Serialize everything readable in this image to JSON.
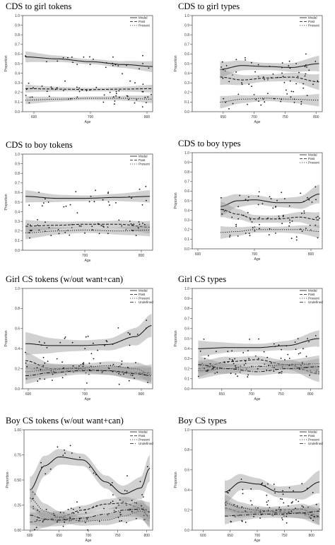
{
  "chart_data": [
    {
      "title": "CDS to girl tokens",
      "type": "scatter",
      "xlabel": "Age",
      "ylabel": "Proportion",
      "xlim": [
        580,
        810
      ],
      "ylim": [
        0,
        1.0
      ],
      "xticks": [
        600,
        700,
        800
      ],
      "xtick_labels": [
        "600",
        "700",
        "800"
      ],
      "yticks": [
        0,
        0.1,
        0.2,
        0.3,
        0.4,
        0.5,
        0.6,
        0.7,
        0.8,
        0.9,
        1.0
      ],
      "ytick_labels": [
        "0.0",
        "0.1",
        "0.2",
        "0.3",
        "0.4",
        "0.5",
        "0.6",
        "0.7",
        "0.8",
        "0.9",
        "1.0"
      ],
      "legend": [
        "Modal",
        "Past",
        "Present"
      ],
      "legend_position": "top-right",
      "series": [
        {
          "name": "Modal",
          "dash": "solid",
          "x": [
            585,
            640,
            700,
            760,
            810
          ],
          "y": [
            0.57,
            0.55,
            0.52,
            0.49,
            0.47
          ],
          "band": 0.035
        },
        {
          "name": "Past",
          "dash": "dashed",
          "x": [
            585,
            640,
            700,
            760,
            810
          ],
          "y": [
            0.24,
            0.235,
            0.23,
            0.235,
            0.24
          ],
          "band": 0.025
        },
        {
          "name": "Present",
          "dash": "dotted",
          "x": [
            585,
            640,
            700,
            760,
            810
          ],
          "y": [
            0.12,
            0.13,
            0.14,
            0.14,
            0.13
          ],
          "band": 0.025
        }
      ]
    },
    {
      "title": "CDS to girl types",
      "type": "scatter",
      "xlabel": "Age",
      "ylabel": "Proportion",
      "xlim": [
        600,
        810
      ],
      "ylim": [
        0,
        1.0
      ],
      "xticks": [
        650,
        700,
        750,
        800
      ],
      "xtick_labels": [
        "650",
        "700",
        "750",
        "800"
      ],
      "yticks": [
        0,
        0.1,
        0.2,
        0.3,
        0.4,
        0.5,
        0.6,
        0.7,
        0.8,
        0.9,
        1.0
      ],
      "ytick_labels": [
        "0.0",
        "0.1",
        "0.2",
        "0.3",
        "0.4",
        "0.5",
        "0.6",
        "0.7",
        "0.8",
        "0.9",
        "1.0"
      ],
      "legend": [
        "Modal",
        "Past",
        "Present"
      ],
      "legend_position": "top-right",
      "series": [
        {
          "name": "Modal",
          "dash": "solid",
          "x": [
            645,
            680,
            720,
            760,
            805
          ],
          "y": [
            0.44,
            0.48,
            0.47,
            0.46,
            0.5
          ],
          "band": 0.05
        },
        {
          "name": "Past",
          "dash": "dashed",
          "x": [
            645,
            680,
            720,
            760,
            805
          ],
          "y": [
            0.36,
            0.33,
            0.35,
            0.36,
            0.31
          ],
          "band": 0.05
        },
        {
          "name": "Present",
          "dash": "dotted",
          "x": [
            645,
            680,
            720,
            760,
            805
          ],
          "y": [
            0.1,
            0.13,
            0.14,
            0.13,
            0.12
          ],
          "band": 0.04
        }
      ]
    },
    {
      "title": "CDS to boy tokens",
      "type": "scatter",
      "xlabel": "Age",
      "ylabel": "Proportion",
      "xlim": [
        590,
        820
      ],
      "ylim": [
        0,
        1.0
      ],
      "xticks": [
        700,
        800
      ],
      "xtick_labels": [
        "700",
        "800"
      ],
      "yticks": [
        0,
        0.1,
        0.2,
        0.3,
        0.4,
        0.5,
        0.6,
        0.7,
        0.8,
        0.9,
        1.0
      ],
      "ytick_labels": [
        "0.0",
        "0.1",
        "0.2",
        "0.3",
        "0.4",
        "0.5",
        "0.6",
        "0.7",
        "0.8",
        "0.9",
        "1.0"
      ],
      "legend": [
        "Modal",
        "Past",
        "Present"
      ],
      "legend_position": "top-right",
      "series": [
        {
          "name": "Modal",
          "dash": "solid",
          "x": [
            595,
            650,
            700,
            760,
            815
          ],
          "y": [
            0.56,
            0.54,
            0.54,
            0.55,
            0.56
          ],
          "band": 0.04
        },
        {
          "name": "Past",
          "dash": "dashed",
          "x": [
            595,
            650,
            700,
            760,
            815
          ],
          "y": [
            0.25,
            0.26,
            0.27,
            0.27,
            0.24
          ],
          "band": 0.04
        },
        {
          "name": "Present",
          "dash": "dotted",
          "x": [
            595,
            650,
            700,
            760,
            815
          ],
          "y": [
            0.18,
            0.2,
            0.21,
            0.2,
            0.21
          ],
          "band": 0.04
        }
      ]
    },
    {
      "title": "CDS to boy types",
      "type": "scatter",
      "xlabel": "Age",
      "ylabel": "Proportion",
      "xlim": [
        590,
        820
      ],
      "ylim": [
        0,
        1.0
      ],
      "xticks": [
        600,
        700,
        800
      ],
      "xtick_labels": [
        "600",
        "700",
        "800"
      ],
      "yticks": [
        0,
        0.1,
        0.2,
        0.3,
        0.4,
        0.5,
        0.6,
        0.7,
        0.8,
        0.9,
        1.0
      ],
      "ytick_labels": [
        "0.0",
        "0.1",
        "0.2",
        "0.3",
        "0.4",
        "0.5",
        "0.6",
        "0.7",
        "0.8",
        "0.9",
        "1.0"
      ],
      "legend": [
        "Modal",
        "Past",
        "Present"
      ],
      "legend_position": "top-right",
      "series": [
        {
          "name": "Modal",
          "dash": "solid",
          "x": [
            640,
            670,
            700,
            740,
            780,
            815
          ],
          "y": [
            0.44,
            0.5,
            0.51,
            0.48,
            0.48,
            0.57
          ],
          "band": 0.06
        },
        {
          "name": "Past",
          "dash": "dashed",
          "x": [
            640,
            670,
            700,
            740,
            780,
            815
          ],
          "y": [
            0.41,
            0.36,
            0.31,
            0.31,
            0.33,
            0.3
          ],
          "band": 0.05
        },
        {
          "name": "Present",
          "dash": "dotted",
          "x": [
            640,
            670,
            700,
            740,
            780,
            815
          ],
          "y": [
            0.17,
            0.18,
            0.2,
            0.2,
            0.2,
            0.18
          ],
          "band": 0.04
        }
      ]
    },
    {
      "title": "Girl CS tokens (w/out want+can)",
      "type": "scatter",
      "xlabel": "Age",
      "ylabel": "Proportion",
      "xlim": [
        590,
        820
      ],
      "ylim": [
        0,
        1.0
      ],
      "xticks": [
        600,
        700,
        800
      ],
      "xtick_labels": [
        "600",
        "700",
        "800"
      ],
      "yticks": [
        0,
        0.2,
        0.4,
        0.6,
        0.8,
        1.0
      ],
      "ytick_labels": [
        "0.0",
        "0.2",
        "0.4",
        "0.6",
        "0.8",
        "1.0"
      ],
      "legend": [
        "Modal",
        "Past",
        "Present",
        "Undefined"
      ],
      "legend_position": "top-right",
      "series": [
        {
          "name": "Modal",
          "dash": "solid",
          "x": [
            595,
            640,
            690,
            740,
            790,
            818
          ],
          "y": [
            0.45,
            0.43,
            0.43,
            0.44,
            0.52,
            0.63
          ],
          "band": 0.07
        },
        {
          "name": "Past",
          "dash": "dashed",
          "x": [
            595,
            640,
            690,
            740,
            790,
            818
          ],
          "y": [
            0.28,
            0.2,
            0.2,
            0.18,
            0.16,
            0.16
          ],
          "band": 0.05
        },
        {
          "name": "Present",
          "dash": "dotted",
          "x": [
            595,
            640,
            690,
            740,
            790,
            818
          ],
          "y": [
            0.17,
            0.19,
            0.21,
            0.23,
            0.2,
            0.14
          ],
          "band": 0.05
        },
        {
          "name": "Undefined",
          "dash": "dashdot",
          "x": [
            595,
            640,
            690,
            740,
            790,
            818
          ],
          "y": [
            0.13,
            0.16,
            0.18,
            0.18,
            0.15,
            0.13
          ],
          "band": 0.05
        }
      ]
    },
    {
      "title": "Girl CS types",
      "type": "scatter",
      "xlabel": "Age",
      "ylabel": "Proportion",
      "xlim": [
        600,
        820
      ],
      "ylim": [
        0,
        1.0
      ],
      "xticks": [
        650,
        700,
        750,
        800
      ],
      "xtick_labels": [
        "650",
        "700",
        "750",
        "800"
      ],
      "yticks": [
        0,
        0.1,
        0.2,
        0.3,
        0.4,
        0.5,
        0.6,
        0.7,
        0.8,
        0.9,
        1.0
      ],
      "ytick_labels": [
        "0.0",
        "0.1",
        "0.2",
        "0.3",
        "0.4",
        "0.5",
        "0.6",
        "0.7",
        "0.8",
        "0.9",
        "1.0"
      ],
      "legend": [
        "Modal",
        "Past",
        "Present",
        "Undefined"
      ],
      "legend_position": "top-right",
      "series": [
        {
          "name": "Modal",
          "dash": "solid",
          "x": [
            610,
            660,
            710,
            760,
            815
          ],
          "y": [
            0.4,
            0.41,
            0.41,
            0.43,
            0.5
          ],
          "band": 0.05
        },
        {
          "name": "Past",
          "dash": "dashed",
          "x": [
            610,
            660,
            710,
            760,
            815
          ],
          "y": [
            0.2,
            0.27,
            0.29,
            0.24,
            0.15
          ],
          "band": 0.05
        },
        {
          "name": "Present",
          "dash": "dotted",
          "x": [
            610,
            660,
            710,
            760,
            815
          ],
          "y": [
            0.18,
            0.2,
            0.22,
            0.24,
            0.25
          ],
          "band": 0.05
        },
        {
          "name": "Undefined",
          "dash": "dashdot",
          "x": [
            610,
            660,
            710,
            760,
            815
          ],
          "y": [
            0.24,
            0.2,
            0.17,
            0.2,
            0.22
          ],
          "band": 0.05
        }
      ]
    },
    {
      "title": "Boy CS tokens (w/out want+can)",
      "type": "scatter",
      "xlabel": "Age",
      "ylabel": "Proportion",
      "xlim": [
        590,
        810
      ],
      "ylim": [
        0,
        1.0
      ],
      "xticks": [
        600,
        650,
        700,
        750,
        800
      ],
      "xtick_labels": [
        "600",
        "650",
        "700",
        "750",
        "800"
      ],
      "yticks": [
        0,
        0.25,
        0.5,
        0.75,
        1.0
      ],
      "ytick_labels": [
        "0.00",
        "0.25",
        "0.50",
        "0.75",
        "1.00"
      ],
      "legend": [
        "Modal",
        "Past",
        "Present",
        "Undefined"
      ],
      "legend_position": "top-right",
      "series": [
        {
          "name": "Modal",
          "dash": "solid",
          "x": [
            600,
            625,
            650,
            690,
            730,
            760,
            790,
            805
          ],
          "y": [
            0.4,
            0.64,
            0.73,
            0.7,
            0.48,
            0.36,
            0.42,
            0.62
          ],
          "band": 0.08
        },
        {
          "name": "Past",
          "dash": "dashed",
          "x": [
            600,
            625,
            650,
            690,
            730,
            760,
            790,
            805
          ],
          "y": [
            0.08,
            0.1,
            0.13,
            0.2,
            0.26,
            0.27,
            0.22,
            0.12
          ],
          "band": 0.06
        },
        {
          "name": "Present",
          "dash": "dotted",
          "x": [
            600,
            625,
            650,
            690,
            730,
            760,
            790,
            805
          ],
          "y": [
            0.32,
            0.19,
            0.13,
            0.09,
            0.1,
            0.14,
            0.19,
            0.14
          ],
          "band": 0.06
        },
        {
          "name": "Undefined",
          "dash": "dashdot",
          "x": [
            600,
            625,
            650,
            690,
            730,
            760,
            790,
            805
          ],
          "y": [
            0.15,
            0.11,
            0.1,
            0.12,
            0.16,
            0.2,
            0.21,
            0.18
          ],
          "band": 0.06
        }
      ]
    },
    {
      "title": "Boy CS types",
      "type": "scatter",
      "xlabel": "Age",
      "ylabel": "Proportion",
      "xlim": [
        580,
        820
      ],
      "ylim": [
        0,
        1.0
      ],
      "xticks": [
        600,
        650,
        700,
        750,
        800
      ],
      "xtick_labels": [
        "600",
        "650",
        "700",
        "750",
        "800"
      ],
      "yticks": [
        0,
        0.2,
        0.4,
        0.6,
        0.8,
        1.0
      ],
      "ytick_labels": [
        "0.0",
        "0.2",
        "0.4",
        "0.6",
        "0.8",
        "1.0"
      ],
      "legend": [
        "Modal",
        "Past",
        "Present",
        "Undefined"
      ],
      "legend_position": "top-right",
      "series": [
        {
          "name": "Modal",
          "dash": "solid",
          "x": [
            640,
            670,
            700,
            740,
            780,
            815
          ],
          "y": [
            0.38,
            0.48,
            0.46,
            0.38,
            0.38,
            0.48
          ],
          "band": 0.07
        },
        {
          "name": "Past",
          "dash": "dashed",
          "x": [
            640,
            670,
            700,
            740,
            780,
            815
          ],
          "y": [
            0.22,
            0.18,
            0.18,
            0.2,
            0.21,
            0.14
          ],
          "band": 0.05
        },
        {
          "name": "Present",
          "dash": "dotted",
          "x": [
            640,
            670,
            700,
            740,
            780,
            815
          ],
          "y": [
            0.27,
            0.22,
            0.2,
            0.18,
            0.17,
            0.13
          ],
          "band": 0.05
        },
        {
          "name": "Undefined",
          "dash": "dashdot",
          "x": [
            640,
            670,
            700,
            740,
            780,
            815
          ],
          "y": [
            0.14,
            0.15,
            0.16,
            0.16,
            0.17,
            0.19
          ],
          "band": 0.05
        }
      ]
    }
  ]
}
